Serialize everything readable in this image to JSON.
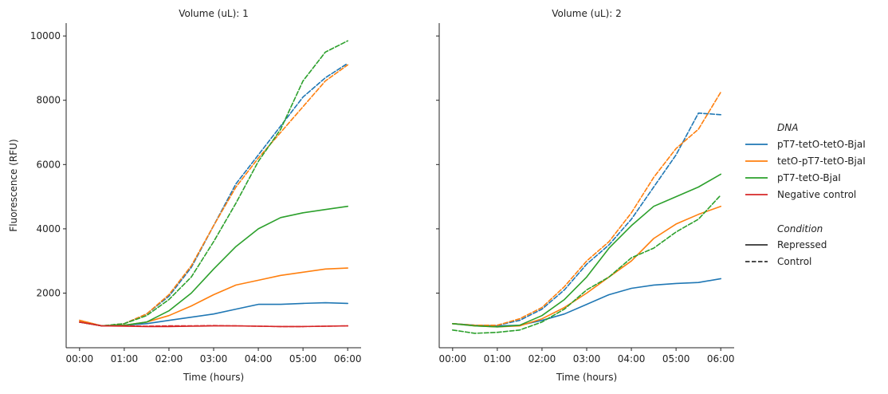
{
  "chart_data": {
    "type": "line",
    "ylabel": "Fluorescence (RFU)",
    "xlabel": "Time (hours)",
    "x_ticks": [
      "00:00",
      "01:00",
      "02:00",
      "03:00",
      "04:00",
      "05:00",
      "06:00"
    ],
    "xlim": [
      -0.3,
      6.3
    ],
    "ylim": [
      300,
      10400
    ],
    "y_ticks": [
      2000,
      4000,
      6000,
      8000,
      10000
    ],
    "x": [
      0,
      0.5,
      1,
      1.5,
      2,
      2.5,
      3,
      3.5,
      4,
      4.5,
      5,
      5.5,
      6
    ],
    "grid": false,
    "legend_position": "right",
    "legend": {
      "hue_title": "DNA",
      "hue_items": [
        {
          "label": "pT7-tetO-tetO-BjaI",
          "color": "#1f77b4"
        },
        {
          "label": "tetO-pT7-tetO-BjaI",
          "color": "#ff7f0e"
        },
        {
          "label": "pT7-tetO-BjaI",
          "color": "#2ca02c"
        },
        {
          "label": "Negative control",
          "color": "#d62728"
        }
      ],
      "style_title": "Condition",
      "style_items": [
        {
          "label": "Repressed",
          "dash": "solid"
        },
        {
          "label": "Control",
          "dash": "dashed"
        }
      ]
    },
    "panels": [
      {
        "title": "Volume (uL): 1",
        "series": [
          {
            "dna": "pT7-tetO-tetO-BjaI",
            "condition": "Repressed",
            "values": [
              1100,
              980,
              1000,
              1050,
              1150,
              1250,
              1350,
              1500,
              1650,
              1650,
              1680,
              1700,
              1680
            ]
          },
          {
            "dna": "pT7-tetO-tetO-BjaI",
            "condition": "Control",
            "values": [
              1150,
              980,
              1050,
              1350,
              1900,
              2800,
              4100,
              5400,
              6300,
              7200,
              8100,
              8700,
              9150
            ]
          },
          {
            "dna": "tetO-pT7-tetO-BjaI",
            "condition": "Repressed",
            "values": [
              1150,
              980,
              1000,
              1100,
              1300,
              1600,
              1950,
              2250,
              2400,
              2550,
              2650,
              2750,
              2780
            ]
          },
          {
            "dna": "tetO-pT7-tetO-BjaI",
            "condition": "Control",
            "values": [
              1150,
              980,
              1050,
              1350,
              1950,
              2850,
              4100,
              5300,
              6200,
              7000,
              7800,
              8600,
              9100
            ]
          },
          {
            "dna": "pT7-tetO-BjaI",
            "condition": "Repressed",
            "values": [
              1100,
              980,
              1000,
              1100,
              1450,
              2000,
              2750,
              3450,
              4000,
              4350,
              4500,
              4600,
              4700
            ]
          },
          {
            "dna": "pT7-tetO-BjaI",
            "condition": "Control",
            "values": [
              1100,
              980,
              1050,
              1300,
              1800,
              2500,
              3600,
              4800,
              6100,
              7100,
              8600,
              9500,
              9850
            ]
          },
          {
            "dna": "Negative control",
            "condition": "Repressed",
            "values": [
              1100,
              980,
              970,
              960,
              960,
              970,
              980,
              980,
              970,
              960,
              960,
              970,
              980
            ]
          },
          {
            "dna": "Negative control",
            "condition": "Control",
            "values": [
              1100,
              980,
              980,
              970,
              980,
              980,
              990,
              980,
              970,
              960,
              960,
              970,
              980
            ]
          }
        ]
      },
      {
        "title": "Volume (uL): 2",
        "series": [
          {
            "dna": "pT7-tetO-tetO-BjaI",
            "condition": "Repressed",
            "values": [
              1050,
              1000,
              980,
              1000,
              1150,
              1350,
              1650,
              1950,
              2150,
              2250,
              2300,
              2330,
              2450
            ]
          },
          {
            "dna": "pT7-tetO-tetO-BjaI",
            "condition": "Control",
            "values": [
              1050,
              1000,
              1000,
              1150,
              1500,
              2100,
              2900,
              3500,
              4300,
              5300,
              6300,
              7600,
              7550
            ]
          },
          {
            "dna": "tetO-pT7-tetO-BjaI",
            "condition": "Repressed",
            "values": [
              1050,
              980,
              950,
              980,
              1200,
              1550,
              2000,
              2500,
              3000,
              3700,
              4150,
              4450,
              4700
            ]
          },
          {
            "dna": "tetO-pT7-tetO-BjaI",
            "condition": "Control",
            "values": [
              1050,
              1000,
              1000,
              1200,
              1550,
              2200,
              3000,
              3600,
              4500,
              5600,
              6500,
              7100,
              8250
            ]
          },
          {
            "dna": "pT7-tetO-BjaI",
            "condition": "Repressed",
            "values": [
              1050,
              980,
              950,
              1000,
              1300,
              1800,
              2500,
              3400,
              4100,
              4700,
              5000,
              5300,
              5700
            ]
          },
          {
            "dna": "pT7-tetO-BjaI",
            "condition": "Control",
            "values": [
              850,
              750,
              780,
              850,
              1100,
              1500,
              2100,
              2500,
              3100,
              3400,
              3900,
              4300,
              5050
            ]
          }
        ]
      }
    ]
  }
}
